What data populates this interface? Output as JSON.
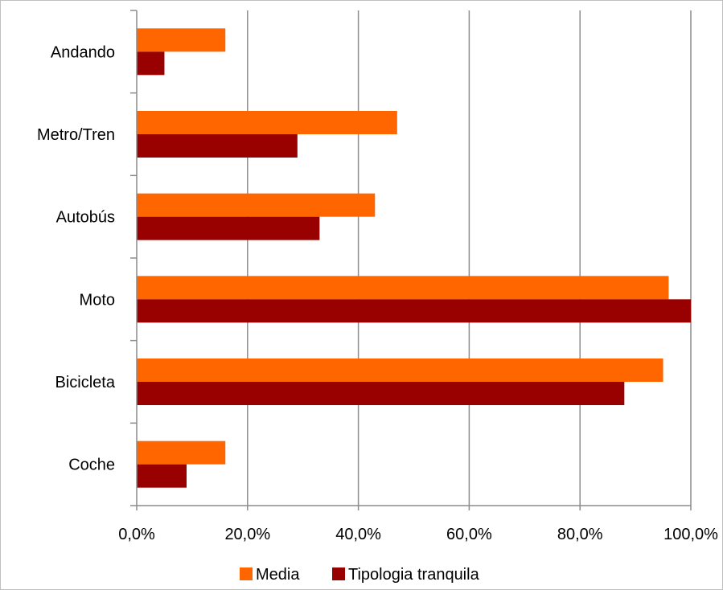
{
  "chart_data": {
    "type": "bar",
    "orientation": "horizontal",
    "categories": [
      "Andando",
      "Metro/Tren",
      "Autobús",
      "Moto",
      "Bicicleta",
      "Coche"
    ],
    "series": [
      {
        "name": "Media",
        "color": "#ff6600",
        "values": [
          16,
          47,
          43,
          96,
          95,
          16
        ]
      },
      {
        "name": "Tipologia tranquila",
        "color": "#990000",
        "values": [
          5,
          29,
          33,
          100,
          88,
          9
        ]
      }
    ],
    "x_ticks": [
      "0,0%",
      "20,0%",
      "40,0%",
      "60,0%",
      "80,0%",
      "100,0%"
    ],
    "xlim": [
      0,
      100
    ],
    "grid": "vertical",
    "legend_position": "bottom"
  }
}
